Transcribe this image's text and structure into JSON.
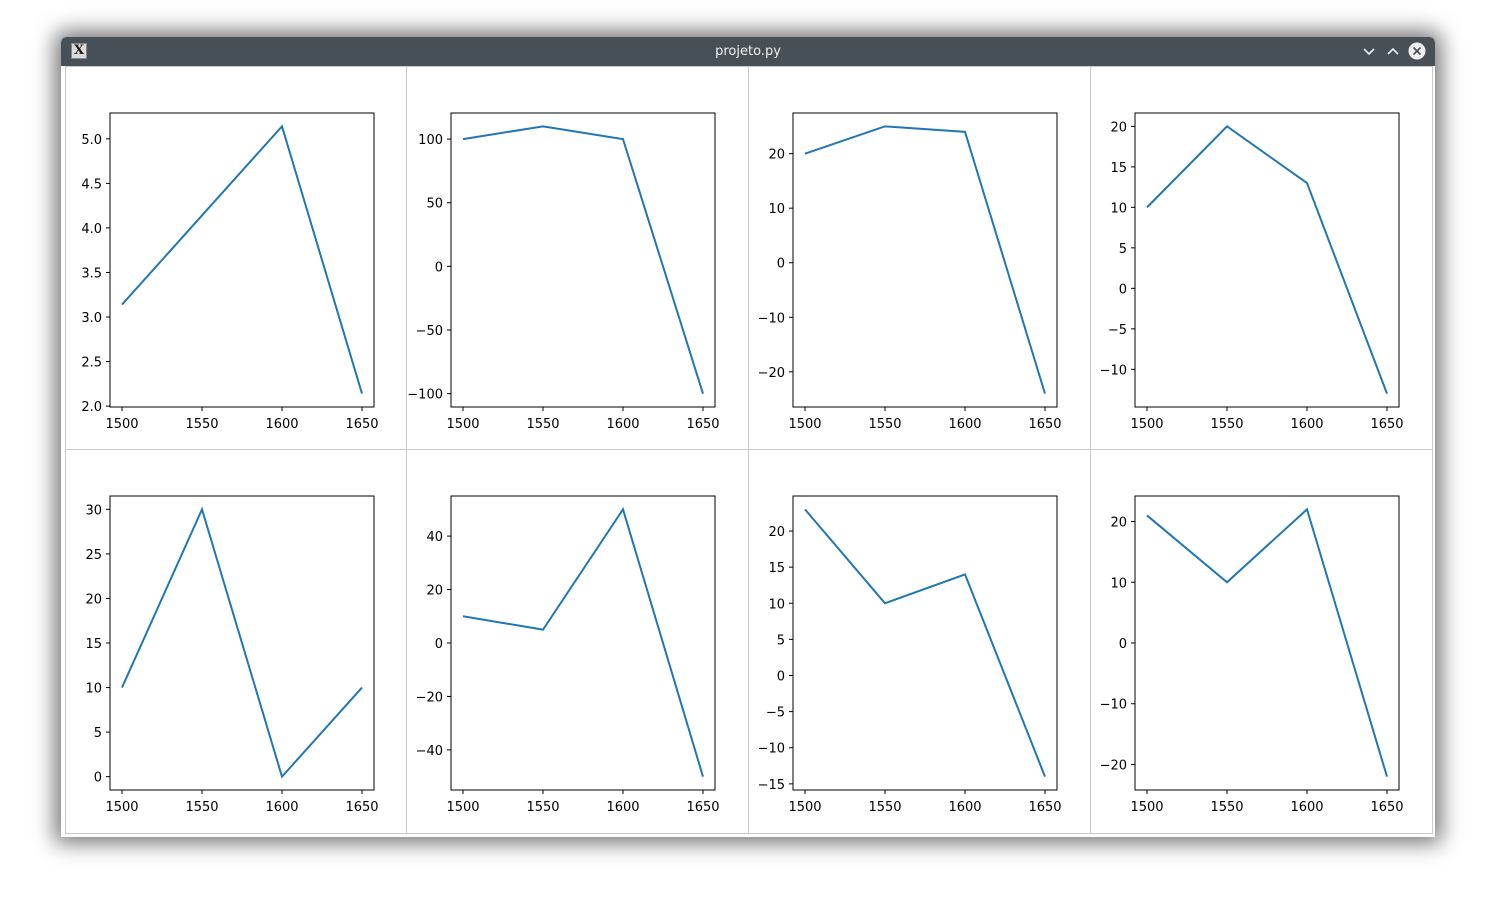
{
  "window": {
    "title": "projeto.py",
    "icon": "x-window-icon"
  },
  "titlebar_buttons": [
    "minimize-icon",
    "maximize-icon",
    "close-icon"
  ],
  "colors": {
    "line": "#1f77b4",
    "titlebar": "#475057"
  },
  "charts": [
    {
      "type": "line",
      "x": [
        1500,
        1550,
        1600,
        1650
      ],
      "y": [
        3.14,
        4.14,
        5.14,
        2.14
      ],
      "xticks": [
        "1500",
        "1550",
        "1600",
        "1650"
      ],
      "xlim": [
        1492.5,
        1657.5
      ],
      "yticks": [
        "2.0",
        "2.5",
        "3.0",
        "3.5",
        "4.0",
        "4.5",
        "5.0"
      ],
      "ytick_values": [
        2.0,
        2.5,
        3.0,
        3.5,
        4.0,
        4.5,
        5.0
      ],
      "ylim": [
        1.99,
        5.29
      ]
    },
    {
      "type": "line",
      "x": [
        1500,
        1550,
        1600,
        1650
      ],
      "y": [
        100,
        110,
        100,
        -100
      ],
      "xticks": [
        "1500",
        "1550",
        "1600",
        "1650"
      ],
      "xlim": [
        1492.5,
        1657.5
      ],
      "yticks": [
        "−100",
        "−50",
        "0",
        "50",
        "100"
      ],
      "ytick_values": [
        -100,
        -50,
        0,
        50,
        100
      ],
      "ylim": [
        -110.5,
        120.5
      ]
    },
    {
      "type": "line",
      "x": [
        1500,
        1550,
        1600,
        1650
      ],
      "y": [
        20,
        25,
        24,
        -24
      ],
      "xticks": [
        "1500",
        "1550",
        "1600",
        "1650"
      ],
      "xlim": [
        1492.5,
        1657.5
      ],
      "yticks": [
        "−20",
        "−10",
        "0",
        "10",
        "20"
      ],
      "ytick_values": [
        -20,
        -10,
        0,
        10,
        20
      ],
      "ylim": [
        -26.45,
        27.45
      ]
    },
    {
      "type": "line",
      "x": [
        1500,
        1550,
        1600,
        1650
      ],
      "y": [
        10,
        20,
        13,
        -13
      ],
      "xticks": [
        "1500",
        "1550",
        "1600",
        "1650"
      ],
      "xlim": [
        1492.5,
        1657.5
      ],
      "yticks": [
        "−10",
        "−5",
        "0",
        "5",
        "10",
        "15",
        "20"
      ],
      "ytick_values": [
        -10,
        -5,
        0,
        5,
        10,
        15,
        20
      ],
      "ylim": [
        -14.65,
        21.65
      ]
    },
    {
      "type": "line",
      "x": [
        1500,
        1550,
        1600,
        1650
      ],
      "y": [
        10,
        30,
        0,
        10
      ],
      "xticks": [
        "1500",
        "1550",
        "1600",
        "1650"
      ],
      "xlim": [
        1492.5,
        1657.5
      ],
      "yticks": [
        "0",
        "5",
        "10",
        "15",
        "20",
        "25",
        "30"
      ],
      "ytick_values": [
        0,
        5,
        10,
        15,
        20,
        25,
        30
      ],
      "ylim": [
        -1.5,
        31.5
      ]
    },
    {
      "type": "line",
      "x": [
        1500,
        1550,
        1600,
        1650
      ],
      "y": [
        10,
        5,
        50,
        -50
      ],
      "xticks": [
        "1500",
        "1550",
        "1600",
        "1650"
      ],
      "xlim": [
        1492.5,
        1657.5
      ],
      "yticks": [
        "−40",
        "−20",
        "0",
        "20",
        "40"
      ],
      "ytick_values": [
        -40,
        -20,
        0,
        20,
        40
      ],
      "ylim": [
        -55,
        55
      ]
    },
    {
      "type": "line",
      "x": [
        1500,
        1550,
        1600,
        1650
      ],
      "y": [
        23,
        10,
        14,
        -14
      ],
      "xticks": [
        "1500",
        "1550",
        "1600",
        "1650"
      ],
      "xlim": [
        1492.5,
        1657.5
      ],
      "yticks": [
        "−15",
        "−10",
        "−5",
        "0",
        "5",
        "10",
        "15",
        "20"
      ],
      "ytick_values": [
        -15,
        -10,
        -5,
        0,
        5,
        10,
        15,
        20
      ],
      "ylim": [
        -15.85,
        24.85
      ]
    },
    {
      "type": "line",
      "x": [
        1500,
        1550,
        1600,
        1650
      ],
      "y": [
        21,
        10,
        22,
        -22
      ],
      "xticks": [
        "1500",
        "1550",
        "1600",
        "1650"
      ],
      "xlim": [
        1492.5,
        1657.5
      ],
      "yticks": [
        "−20",
        "−10",
        "0",
        "10",
        "20"
      ],
      "ytick_values": [
        -20,
        -10,
        0,
        10,
        20
      ],
      "ylim": [
        -24.2,
        24.2
      ]
    }
  ]
}
